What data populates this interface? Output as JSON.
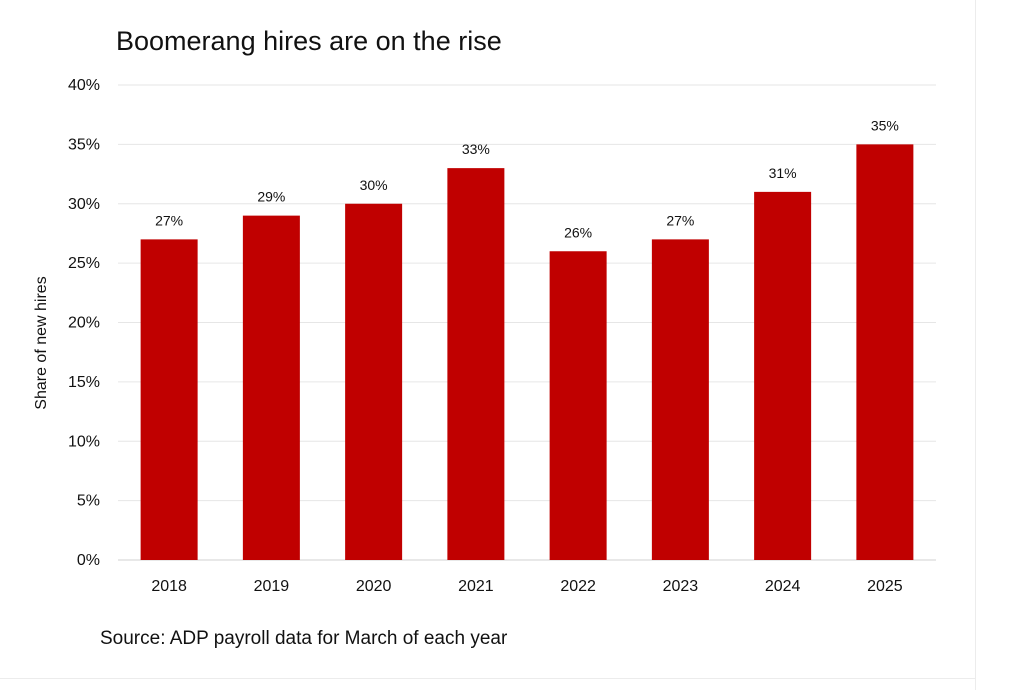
{
  "chart_data": {
    "type": "bar",
    "title": "Boomerang hires are on the rise",
    "xlabel": "",
    "ylabel": "Share of new hires",
    "categories": [
      "2018",
      "2019",
      "2020",
      "2021",
      "2022",
      "2023",
      "2024",
      "2025"
    ],
    "values": [
      27,
      29,
      30,
      33,
      26,
      27,
      31,
      35
    ],
    "data_labels": [
      "27%",
      "29%",
      "30%",
      "33%",
      "26%",
      "27%",
      "31%",
      "35%"
    ],
    "ylim": [
      0,
      40
    ],
    "y_ticks": [
      0,
      5,
      10,
      15,
      20,
      25,
      30,
      35,
      40
    ],
    "y_tick_labels": [
      "0%",
      "5%",
      "10%",
      "15%",
      "20%",
      "25%",
      "30%",
      "35%",
      "40%"
    ],
    "grid": true,
    "legend": "none",
    "bar_color": "#C00000"
  },
  "source": "Source: ADP payroll data for March of each year"
}
